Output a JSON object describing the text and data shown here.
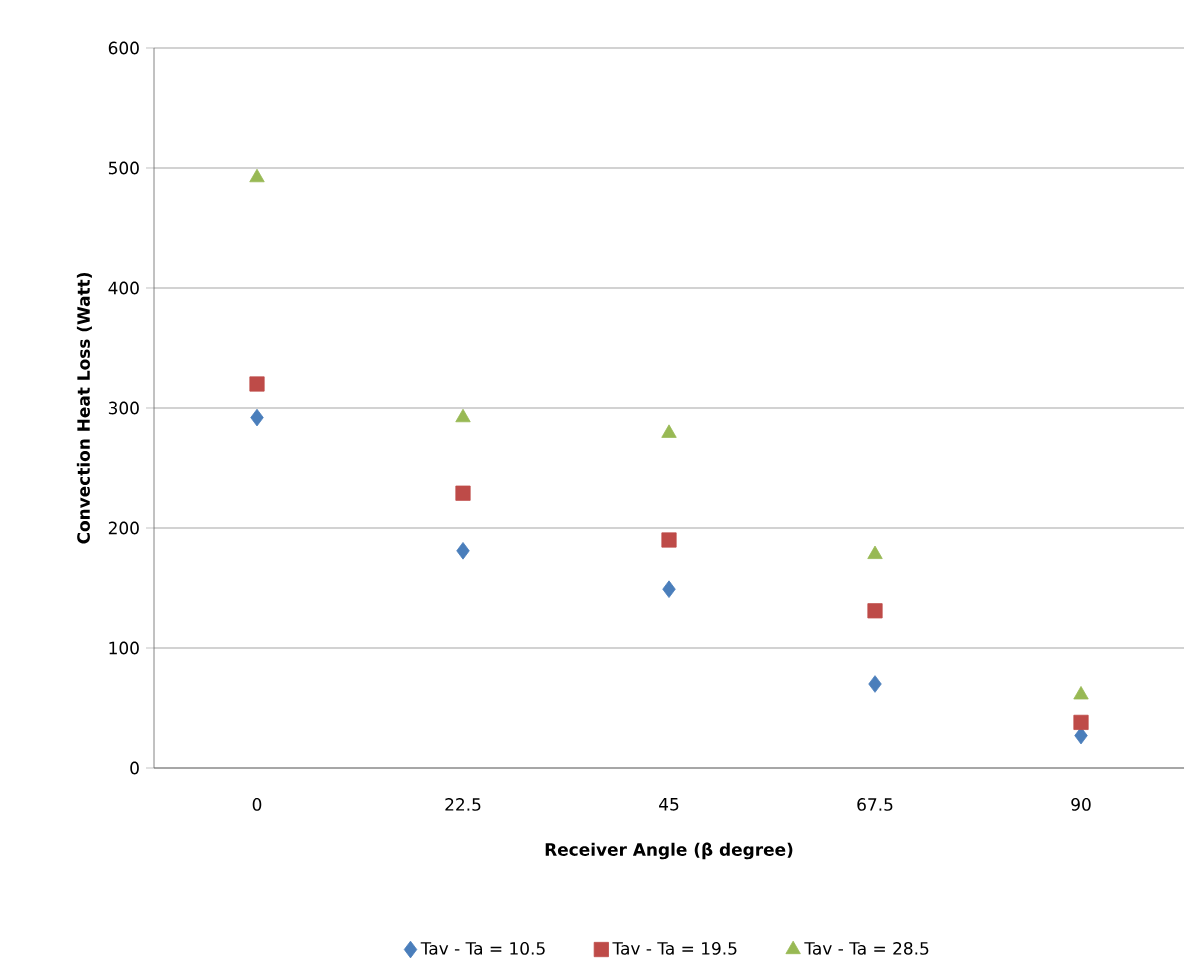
{
  "chart_data": {
    "type": "scatter",
    "xlabel": "Receiver Angle (β degree)",
    "ylabel": "Convection Heat Loss (Watt)",
    "categories": [
      "0",
      "22.5",
      "45",
      "67.5",
      "90"
    ],
    "series": [
      {
        "name": "Tav - Ta = 10.5",
        "color": "#4a7ebb",
        "marker": "diamond",
        "values": [
          292,
          181,
          149,
          70,
          27
        ]
      },
      {
        "name": "Tav - Ta = 19.5",
        "color": "#be4b48",
        "marker": "square",
        "values": [
          320,
          229,
          190,
          131,
          38
        ]
      },
      {
        "name": "Tav - Ta = 28.5",
        "color": "#98b954",
        "marker": "triangle",
        "values": [
          492,
          292,
          279,
          178,
          61
        ]
      }
    ],
    "ylim": [
      0,
      600
    ],
    "yticks": [
      0,
      100,
      200,
      300,
      400,
      500,
      600
    ],
    "grid": "y",
    "legend": "bottom"
  }
}
